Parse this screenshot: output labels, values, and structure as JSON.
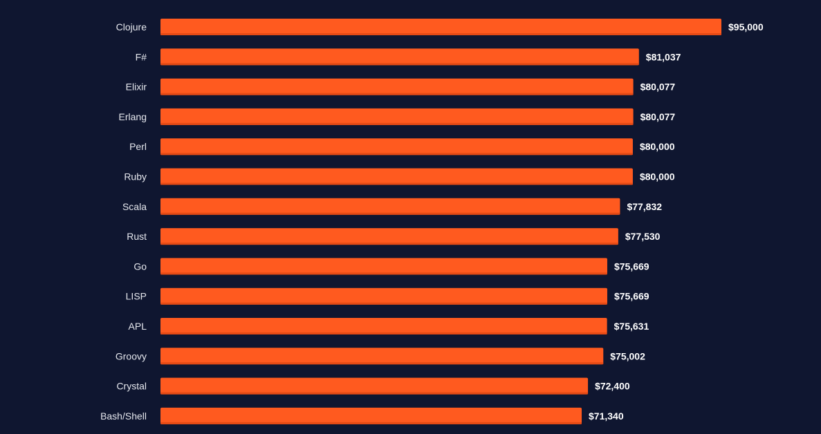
{
  "colors": {
    "background": "#0f1630",
    "bar": "#ff5a1f",
    "bar_shadow": "#e64a15",
    "category_text": "#e6e8ee",
    "value_text": "#ffffff"
  },
  "chart_data": {
    "type": "bar",
    "orientation": "horizontal",
    "title": "",
    "xlabel": "",
    "ylabel": "",
    "grid": false,
    "legend": "none",
    "xlim": [
      0,
      95000
    ],
    "categories": [
      "Clojure",
      "F#",
      "Elixir",
      "Erlang",
      "Perl",
      "Ruby",
      "Scala",
      "Rust",
      "Go",
      "LISP",
      "APL",
      "Groovy",
      "Crystal",
      "Bash/Shell"
    ],
    "values": [
      95000,
      81037,
      80077,
      80077,
      80000,
      80000,
      77832,
      77530,
      75669,
      75669,
      75631,
      75002,
      72400,
      71340
    ],
    "data_labels": [
      "$95,000",
      "$81,037",
      "$80,077",
      "$80,077",
      "$80,000",
      "$80,000",
      "$77,832",
      "$77,530",
      "$75,669",
      "$75,669",
      "$75,631",
      "$75,002",
      "$72,400",
      "$71,340"
    ]
  }
}
